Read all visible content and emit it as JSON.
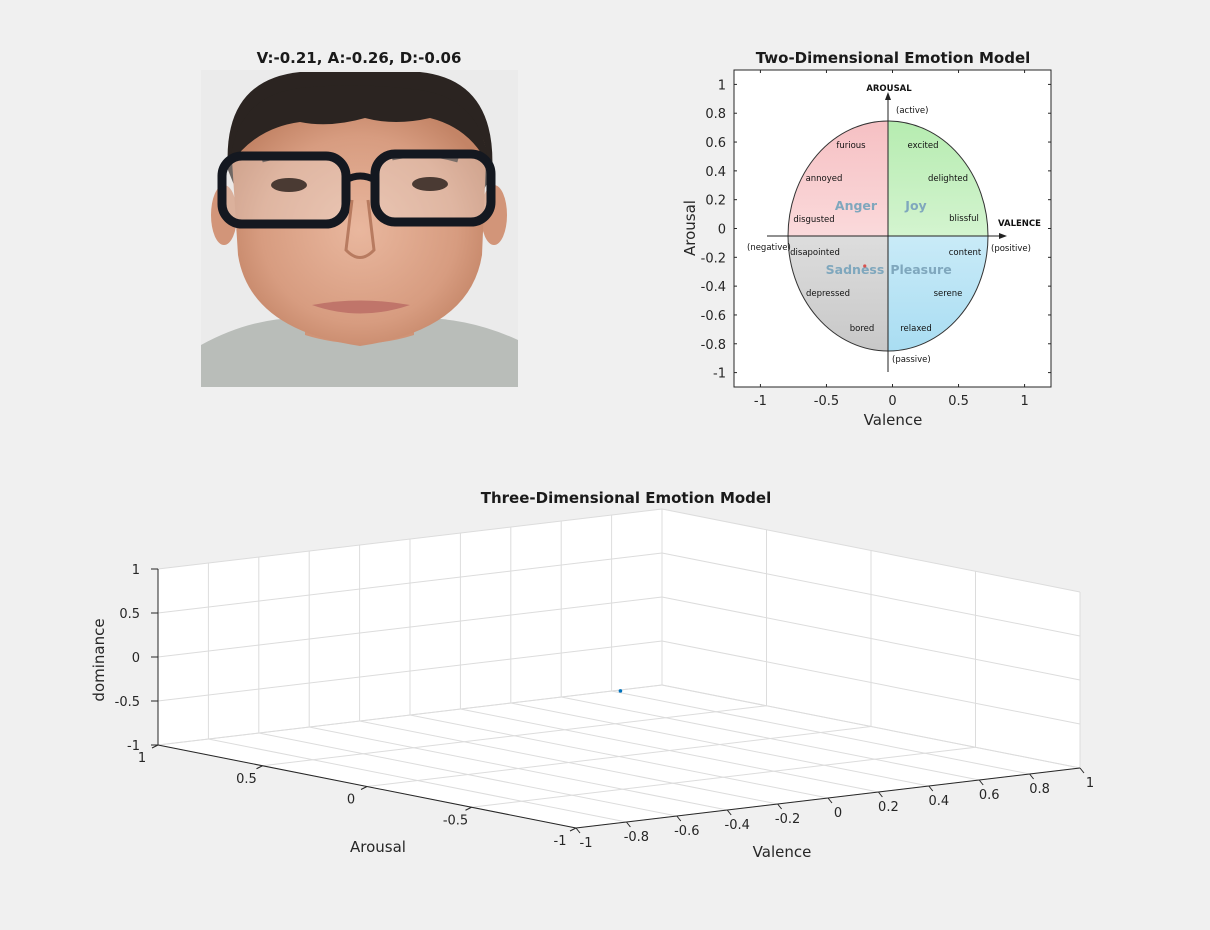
{
  "photo": {
    "title": "V:-0.21, A:-0.26, D:-0.06"
  },
  "chart_data": [
    {
      "type": "scatter",
      "title": "Two-Dimensional Emotion Model",
      "xlabel": "Valence",
      "ylabel": "Arousal",
      "xlim": [
        -1.2,
        1.2
      ],
      "ylim": [
        -1.1,
        1.1
      ],
      "xticks": [
        -1,
        -0.5,
        0,
        0.5,
        1
      ],
      "yticks": [
        1,
        0.8,
        0.6,
        0.4,
        0.2,
        0,
        -0.2,
        -0.4,
        -0.6,
        -0.8,
        -1
      ],
      "grid": false,
      "points": [
        {
          "x": -0.21,
          "y": -0.26,
          "color": "#d9534f"
        }
      ],
      "background_model": {
        "axis_labels": {
          "arousal": "AROUSAL",
          "valence": "VALENCE",
          "active": "(active)",
          "passive": "(passive)",
          "negative": "(negative)",
          "positive": "(positive)"
        },
        "quadrants": [
          {
            "name": "Anger",
            "color": "#f6c7c9",
            "words": [
              "furious",
              "annoyed",
              "disgusted"
            ]
          },
          {
            "name": "Joy",
            "color": "#bfeebc",
            "words": [
              "excited",
              "delighted",
              "blissful"
            ]
          },
          {
            "name": "Sadness",
            "color": "#d9d9d9",
            "words": [
              "disapointed",
              "depressed",
              "bored"
            ]
          },
          {
            "name": "Pleasure",
            "color": "#bfe8f5",
            "words": [
              "content",
              "serene",
              "relaxed"
            ]
          }
        ]
      }
    },
    {
      "type": "scatter3d",
      "title": "Three-Dimensional Emotion Model",
      "xlabel": "Valence",
      "ylabel": "Arousal",
      "zlabel": "dominance",
      "xlim": [
        -1,
        1
      ],
      "ylim": [
        -1,
        1
      ],
      "zlim": [
        -1,
        1
      ],
      "xticks": [
        -1,
        -0.8,
        -0.6,
        -0.4,
        -0.2,
        0,
        0.2,
        0.4,
        0.6,
        0.8,
        1
      ],
      "yticks": [
        1,
        0.5,
        0,
        -0.5,
        -1
      ],
      "zticks": [
        1,
        0.5,
        0,
        -0.5,
        -1
      ],
      "grid": true,
      "points": [
        {
          "x": -0.21,
          "y": -0.26,
          "z": -0.06,
          "color": "#0072bd"
        }
      ]
    }
  ]
}
